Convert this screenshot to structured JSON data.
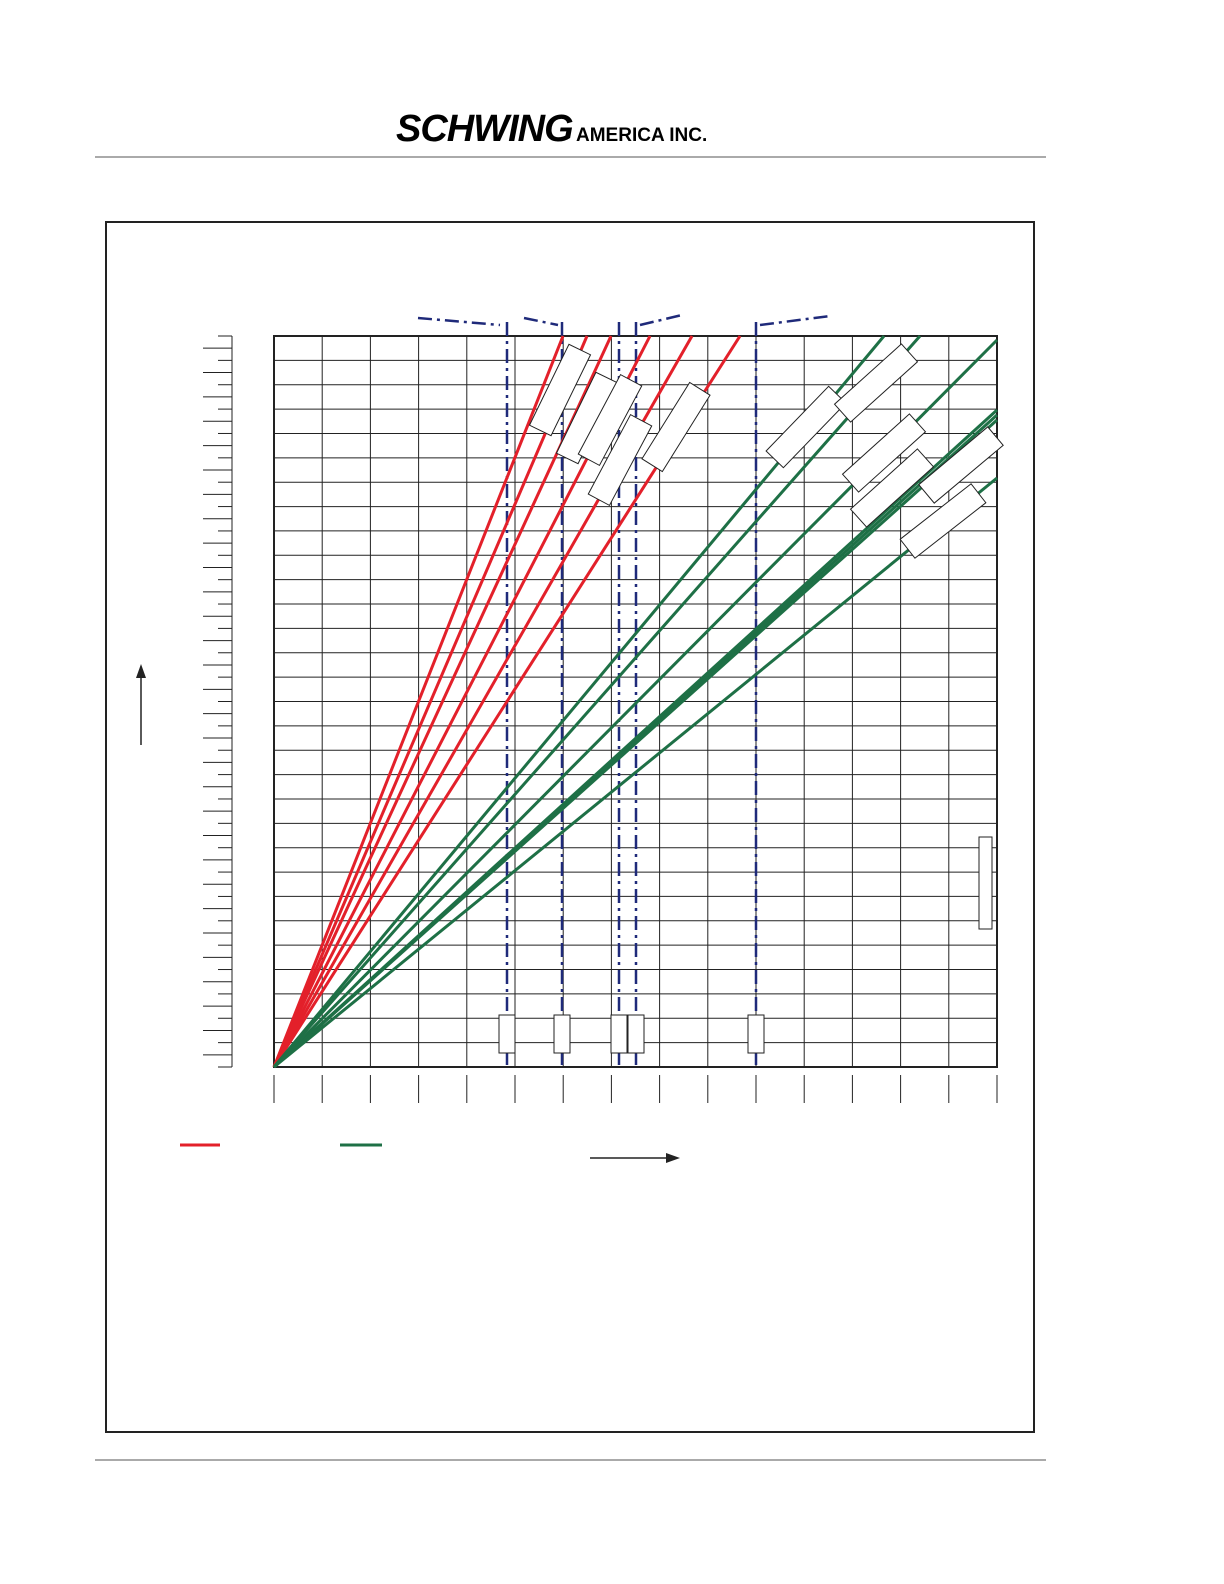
{
  "header": {
    "brand": "SCHWING",
    "suffix": "AMERICA INC."
  }
}
